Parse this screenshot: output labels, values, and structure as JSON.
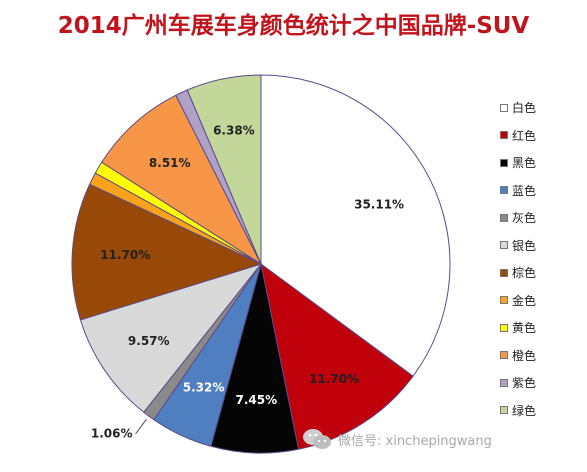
{
  "chart_data": {
    "type": "pie",
    "title": "2014广州车展车身颜色统计之中国品牌-SUV",
    "slices": [
      {
        "label": "白色",
        "value": 35.11,
        "color": "#ffffff",
        "data_label": "35.11%"
      },
      {
        "label": "红色",
        "value": 11.7,
        "color": "#c0000b",
        "data_label": "11.70%"
      },
      {
        "label": "黑色",
        "value": 7.45,
        "color": "#050505",
        "data_label": "7.45%"
      },
      {
        "label": "蓝色",
        "value": 5.32,
        "color": "#4f7ec1",
        "data_label": "5.32%"
      },
      {
        "label": "灰色",
        "value": 1.06,
        "color": "#8a8a8a",
        "data_label": "1.06%"
      },
      {
        "label": "银色",
        "value": 9.57,
        "color": "#d9d9d9",
        "data_label": "9.57%"
      },
      {
        "label": "棕色",
        "value": 11.7,
        "color": "#984807",
        "data_label": "11.70%"
      },
      {
        "label": "金色",
        "value": 1.06,
        "color": "#f9a21b",
        "data_label": ""
      },
      {
        "label": "黄色",
        "value": 1.06,
        "color": "#ffff00",
        "data_label": ""
      },
      {
        "label": "橙色",
        "value": 8.51,
        "color": "#f79646",
        "data_label": "8.51%"
      },
      {
        "label": "紫色",
        "value": 1.06,
        "color": "#b1a0c7",
        "data_label": ""
      },
      {
        "label": "绿色",
        "value": 6.38,
        "color": "#c4d79b",
        "data_label": "6.38%"
      }
    ],
    "legend_position": "right"
  },
  "watermark": {
    "text": "微信号: xinchepingwang",
    "icon": "wechat-icon"
  }
}
